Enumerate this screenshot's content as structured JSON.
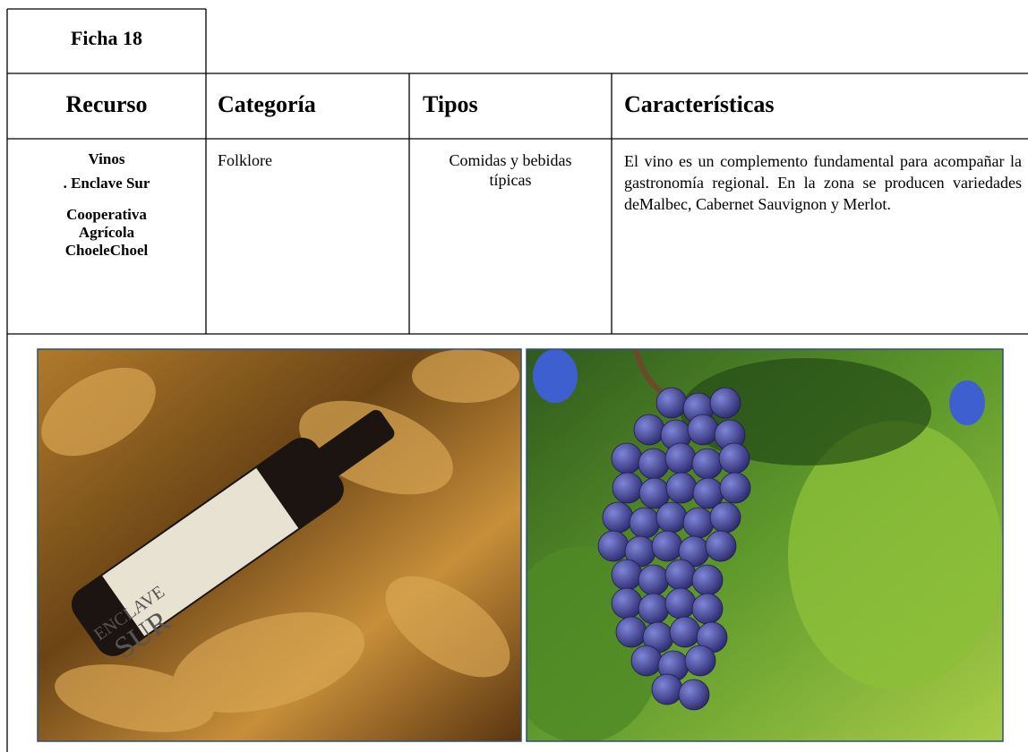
{
  "header": {
    "title": "Ficha 18"
  },
  "table": {
    "columns": [
      "Recurso",
      "Categoría",
      "Tipos",
      "Características"
    ],
    "rows": [
      [
        [
          "Vinos",
          ". Enclave Sur",
          "Cooperativa Agrícola ChoeleChoel"
        ],
        "Folklore",
        "Comidas y bebidas típicas",
        "El vino es un complemento fundamental para acompañar la gastronomía regional. En la zona se producen variedades deMalbec, Cabernet Sauvignon y Merlot."
      ]
    ]
  },
  "images": [
    {
      "label": [
        "ENCLAVE",
        "SUR"
      ]
    }
  ]
}
